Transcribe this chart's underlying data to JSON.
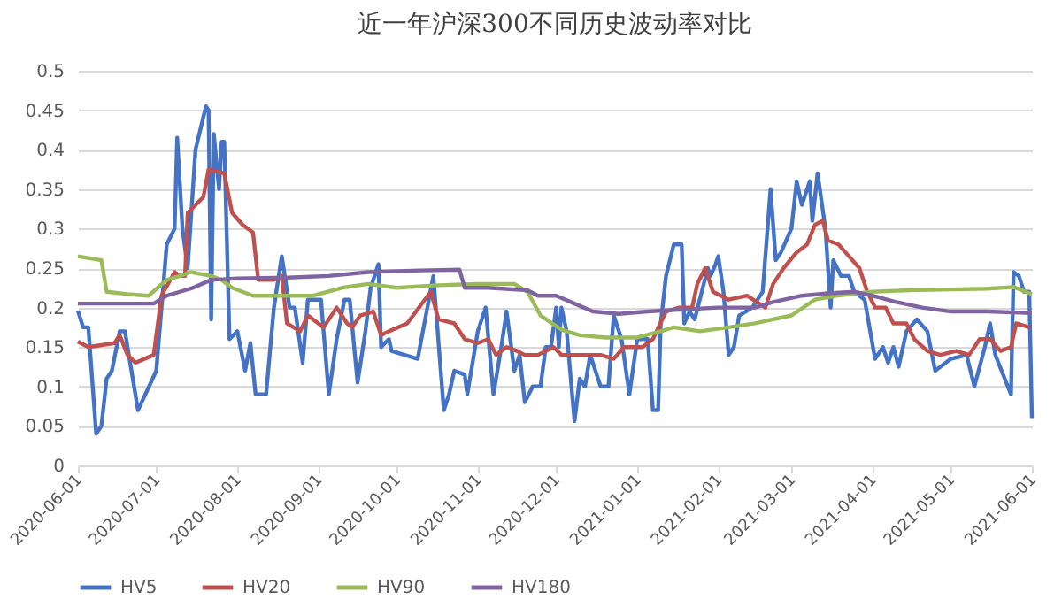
{
  "chart_data": {
    "type": "line",
    "title": "近一年沪深300不同历史波动率对比",
    "xlim": [
      "2020-06-01",
      "2021-06-01"
    ],
    "xticks": [
      "2020-06-01",
      "2020-07-01",
      "2020-08-01",
      "2020-09-01",
      "2020-10-01",
      "2020-11-01",
      "2020-12-01",
      "2021-01-01",
      "2021-02-01",
      "2021-03-01",
      "2021-04-01",
      "2021-05-01",
      "2021-06-01"
    ],
    "ylim": [
      0,
      0.5
    ],
    "yticks": [
      0,
      0.05,
      0.1,
      0.15,
      0.2,
      0.25,
      0.3,
      0.35,
      0.4,
      0.45,
      0.5
    ],
    "grid": "y",
    "legend": "bottom",
    "marker": "none",
    "line_style": "solid",
    "series": [
      {
        "name": "HV5",
        "color": "#4472c4",
        "x": [
          "2020-06-01",
          "2020-06-03",
          "2020-06-05",
          "2020-06-08",
          "2020-06-10",
          "2020-06-12",
          "2020-06-14",
          "2020-06-17",
          "2020-06-19",
          "2020-06-21",
          "2020-06-24",
          "2020-07-01",
          "2020-07-05",
          "2020-07-08",
          "2020-07-09",
          "2020-07-11",
          "2020-07-13",
          "2020-07-16",
          "2020-07-20",
          "2020-07-21",
          "2020-07-22",
          "2020-07-23",
          "2020-07-25",
          "2020-07-26",
          "2020-07-27",
          "2020-07-29",
          "2020-08-01",
          "2020-08-04",
          "2020-08-06",
          "2020-08-08",
          "2020-08-12",
          "2020-08-15",
          "2020-08-18",
          "2020-08-21",
          "2020-08-23",
          "2020-08-26",
          "2020-08-28",
          "2020-09-02",
          "2020-09-05",
          "2020-09-08",
          "2020-09-11",
          "2020-09-13",
          "2020-09-16",
          "2020-09-19",
          "2020-09-21",
          "2020-09-24",
          "2020-09-25",
          "2020-09-28",
          "2020-09-29",
          "2020-10-09",
          "2020-10-15",
          "2020-10-19",
          "2020-10-21",
          "2020-10-23",
          "2020-10-27",
          "2020-10-28",
          "2020-11-01",
          "2020-11-04",
          "2020-11-07",
          "2020-11-10",
          "2020-11-12",
          "2020-11-15",
          "2020-11-17",
          "2020-11-19",
          "2020-11-22",
          "2020-11-25",
          "2020-11-27",
          "2020-11-29",
          "2020-12-01",
          "2020-12-02",
          "2020-12-03",
          "2020-12-05",
          "2020-12-08",
          "2020-12-10",
          "2020-12-12",
          "2020-12-14",
          "2020-12-16",
          "2020-12-18",
          "2020-12-21",
          "2020-12-23",
          "2020-12-26",
          "2020-12-29",
          "2021-01-01",
          "2021-01-05",
          "2021-01-07",
          "2021-01-09",
          "2021-01-10",
          "2021-01-12",
          "2021-01-15",
          "2021-01-18",
          "2021-01-19",
          "2021-01-21",
          "2021-01-23",
          "2021-01-28",
          "2021-01-29",
          "2021-01-31",
          "2021-02-01",
          "2021-02-03",
          "2021-02-05",
          "2021-02-07",
          "2021-02-09",
          "2021-02-14",
          "2021-02-18",
          "2021-02-21",
          "2021-02-23",
          "2021-02-25",
          "2021-03-01",
          "2021-03-03",
          "2021-03-05",
          "2021-03-08",
          "2021-03-09",
          "2021-03-11",
          "2021-03-14",
          "2021-03-16",
          "2021-03-17",
          "2021-03-20",
          "2021-03-23",
          "2021-03-25",
          "2021-03-29",
          "2021-04-02",
          "2021-04-05",
          "2021-04-07",
          "2021-04-09",
          "2021-04-11",
          "2021-04-14",
          "2021-04-18",
          "2021-04-22",
          "2021-04-25",
          "2021-05-01",
          "2021-05-07",
          "2021-05-10",
          "2021-05-14",
          "2021-05-16",
          "2021-05-18",
          "2021-05-24",
          "2021-05-25",
          "2021-05-27",
          "2021-05-29",
          "2021-05-31",
          "2021-06-01"
        ],
        "values": [
          0.196,
          0.175,
          0.175,
          0.04,
          0.05,
          0.11,
          0.12,
          0.17,
          0.17,
          0.13,
          0.07,
          0.12,
          0.28,
          0.3,
          0.415,
          0.3,
          0.25,
          0.4,
          0.455,
          0.45,
          0.185,
          0.42,
          0.35,
          0.41,
          0.41,
          0.16,
          0.17,
          0.12,
          0.155,
          0.09,
          0.09,
          0.2,
          0.265,
          0.2,
          0.2,
          0.13,
          0.21,
          0.21,
          0.09,
          0.16,
          0.21,
          0.21,
          0.105,
          0.17,
          0.225,
          0.255,
          0.15,
          0.16,
          0.145,
          0.135,
          0.24,
          0.07,
          0.09,
          0.12,
          0.115,
          0.09,
          0.17,
          0.2,
          0.09,
          0.15,
          0.195,
          0.12,
          0.14,
          0.08,
          0.1,
          0.1,
          0.15,
          0.15,
          0.2,
          0.15,
          0.2,
          0.17,
          0.056,
          0.11,
          0.1,
          0.14,
          0.12,
          0.1,
          0.1,
          0.19,
          0.16,
          0.09,
          0.16,
          0.16,
          0.07,
          0.07,
          0.18,
          0.24,
          0.28,
          0.28,
          0.18,
          0.195,
          0.185,
          0.25,
          0.24,
          0.255,
          0.265,
          0.22,
          0.14,
          0.15,
          0.19,
          0.2,
          0.22,
          0.35,
          0.26,
          0.27,
          0.3,
          0.36,
          0.33,
          0.36,
          0.31,
          0.37,
          0.3,
          0.2,
          0.26,
          0.24,
          0.24,
          0.22,
          0.21,
          0.135,
          0.15,
          0.13,
          0.15,
          0.125,
          0.17,
          0.185,
          0.17,
          0.12,
          0.135,
          0.14,
          0.1,
          0.15,
          0.18,
          0.14,
          0.09,
          0.245,
          0.24,
          0.22,
          0.22,
          0.06
        ]
      },
      {
        "name": "HV20",
        "color": "#c0504d",
        "x": [
          "2020-06-01",
          "2020-06-05",
          "2020-06-15",
          "2020-06-17",
          "2020-06-20",
          "2020-06-23",
          "2020-06-30",
          "2020-07-03",
          "2020-07-08",
          "2020-07-10",
          "2020-07-12",
          "2020-07-13",
          "2020-07-16",
          "2020-07-19",
          "2020-07-21",
          "2020-07-27",
          "2020-07-30",
          "2020-08-03",
          "2020-08-07",
          "2020-08-09",
          "2020-08-15",
          "2020-08-18",
          "2020-08-20",
          "2020-08-25",
          "2020-08-28",
          "2020-09-03",
          "2020-09-08",
          "2020-09-12",
          "2020-09-14",
          "2020-09-17",
          "2020-09-22",
          "2020-09-25",
          "2020-09-28",
          "2020-10-05",
          "2020-10-14",
          "2020-10-17",
          "2020-10-23",
          "2020-10-27",
          "2020-11-01",
          "2020-11-05",
          "2020-11-08",
          "2020-11-12",
          "2020-11-16",
          "2020-11-19",
          "2020-11-24",
          "2020-11-30",
          "2020-12-03",
          "2020-12-10",
          "2020-12-18",
          "2020-12-23",
          "2020-12-27",
          "2021-01-03",
          "2021-01-07",
          "2021-01-12",
          "2021-01-17",
          "2021-01-22",
          "2021-01-24",
          "2021-01-27",
          "2021-01-30",
          "2021-02-02",
          "2021-02-05",
          "2021-02-12",
          "2021-02-19",
          "2021-02-22",
          "2021-02-26",
          "2021-03-03",
          "2021-03-07",
          "2021-03-10",
          "2021-03-13",
          "2021-03-15",
          "2021-03-19",
          "2021-03-23",
          "2021-03-27",
          "2021-03-30",
          "2021-04-02",
          "2021-04-06",
          "2021-04-09",
          "2021-04-14",
          "2021-04-17",
          "2021-04-22",
          "2021-04-27",
          "2021-05-03",
          "2021-05-08",
          "2021-05-12",
          "2021-05-16",
          "2021-05-20",
          "2021-05-24",
          "2021-05-26",
          "2021-05-31"
        ],
        "values": [
          0.157,
          0.15,
          0.155,
          0.165,
          0.14,
          0.13,
          0.14,
          0.215,
          0.245,
          0.24,
          0.24,
          0.32,
          0.33,
          0.34,
          0.375,
          0.37,
          0.32,
          0.305,
          0.295,
          0.235,
          0.235,
          0.24,
          0.18,
          0.17,
          0.19,
          0.175,
          0.2,
          0.18,
          0.175,
          0.19,
          0.195,
          0.165,
          0.17,
          0.18,
          0.22,
          0.185,
          0.18,
          0.16,
          0.155,
          0.16,
          0.14,
          0.15,
          0.145,
          0.14,
          0.14,
          0.15,
          0.14,
          0.14,
          0.14,
          0.135,
          0.15,
          0.15,
          0.16,
          0.195,
          0.2,
          0.2,
          0.23,
          0.25,
          0.22,
          0.215,
          0.21,
          0.215,
          0.2,
          0.23,
          0.25,
          0.27,
          0.28,
          0.305,
          0.31,
          0.285,
          0.28,
          0.265,
          0.25,
          0.22,
          0.2,
          0.2,
          0.18,
          0.18,
          0.16,
          0.145,
          0.14,
          0.145,
          0.14,
          0.16,
          0.16,
          0.145,
          0.15,
          0.18,
          0.175
        ]
      },
      {
        "name": "HV90",
        "color": "#9bbb59",
        "x": [
          "2020-06-01",
          "2020-06-10",
          "2020-06-12",
          "2020-06-20",
          "2020-06-28",
          "2020-07-05",
          "2020-07-10",
          "2020-07-14",
          "2020-07-22",
          "2020-07-26",
          "2020-07-30",
          "2020-08-07",
          "2020-08-20",
          "2020-08-30",
          "2020-09-10",
          "2020-09-20",
          "2020-10-01",
          "2020-10-15",
          "2020-11-01",
          "2020-11-15",
          "2020-11-20",
          "2020-11-25",
          "2020-12-03",
          "2020-12-10",
          "2020-12-20",
          "2021-01-01",
          "2021-01-10",
          "2021-01-15",
          "2021-01-25",
          "2021-02-05",
          "2021-02-15",
          "2021-03-01",
          "2021-03-10",
          "2021-03-18",
          "2021-04-01",
          "2021-04-15",
          "2021-05-01",
          "2021-05-15",
          "2021-05-25",
          "2021-06-01"
        ],
        "values": [
          0.265,
          0.26,
          0.22,
          0.217,
          0.215,
          0.235,
          0.24,
          0.245,
          0.24,
          0.235,
          0.225,
          0.215,
          0.215,
          0.215,
          0.225,
          0.23,
          0.225,
          0.228,
          0.23,
          0.23,
          0.22,
          0.19,
          0.172,
          0.165,
          0.162,
          0.162,
          0.17,
          0.175,
          0.17,
          0.175,
          0.18,
          0.19,
          0.21,
          0.215,
          0.22,
          0.222,
          0.223,
          0.224,
          0.226,
          0.217
        ]
      },
      {
        "name": "HV180",
        "color": "#8064a2",
        "x": [
          "2020-06-01",
          "2020-06-30",
          "2020-07-05",
          "2020-07-10",
          "2020-07-15",
          "2020-07-22",
          "2020-08-01",
          "2020-08-20",
          "2020-09-05",
          "2020-09-20",
          "2020-10-10",
          "2020-10-25",
          "2020-10-27",
          "2020-11-05",
          "2020-11-20",
          "2020-11-24",
          "2020-12-01",
          "2020-12-08",
          "2020-12-15",
          "2020-12-25",
          "2021-01-05",
          "2021-01-15",
          "2021-02-01",
          "2021-02-15",
          "2021-02-22",
          "2021-03-05",
          "2021-03-15",
          "2021-03-25",
          "2021-04-01",
          "2021-04-10",
          "2021-04-20",
          "2021-05-01",
          "2021-05-15",
          "2021-06-01"
        ],
        "values": [
          0.205,
          0.205,
          0.215,
          0.22,
          0.225,
          0.235,
          0.237,
          0.238,
          0.24,
          0.245,
          0.247,
          0.248,
          0.225,
          0.225,
          0.222,
          0.215,
          0.215,
          0.205,
          0.195,
          0.192,
          0.195,
          0.197,
          0.2,
          0.2,
          0.207,
          0.215,
          0.218,
          0.22,
          0.215,
          0.207,
          0.2,
          0.195,
          0.195,
          0.193
        ]
      }
    ]
  }
}
